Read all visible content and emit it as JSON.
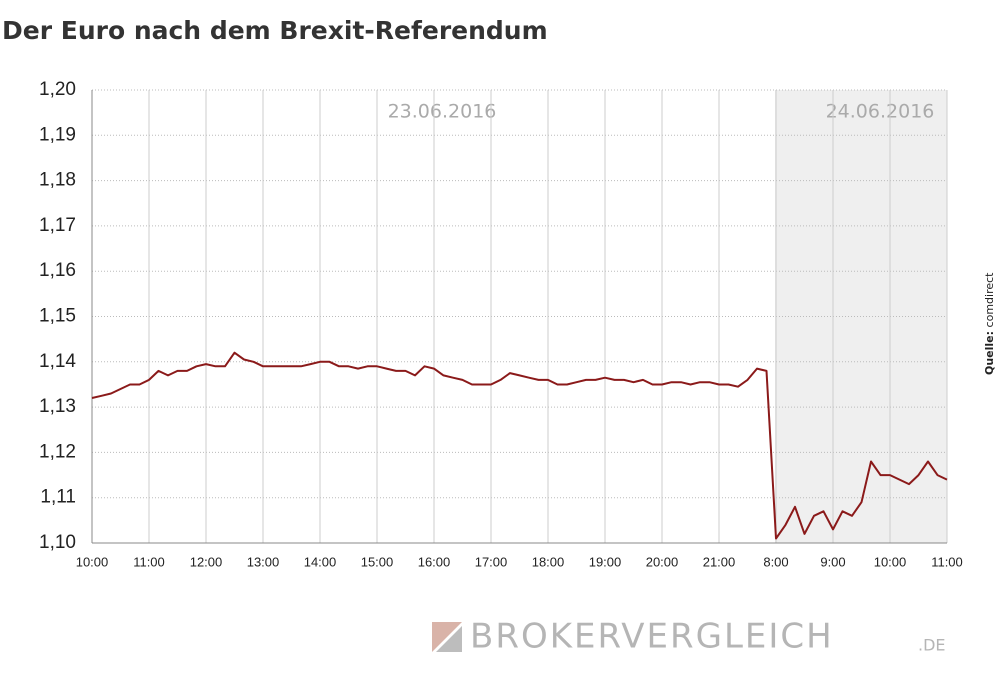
{
  "chart_data": {
    "type": "line",
    "title": "Der Euro nach dem Brexit-Referendum",
    "annotations": [
      "23.06.2016",
      "24.06.2016"
    ],
    "source_label": "Quelle:",
    "source": "comdirect",
    "watermark": [
      "BROKERVERGLEICH",
      ".DE"
    ],
    "categories": [
      "10:00",
      null,
      null,
      null,
      null,
      null,
      "11:00",
      null,
      null,
      null,
      null,
      null,
      "12:00",
      null,
      null,
      null,
      null,
      null,
      "13:00",
      null,
      null,
      null,
      null,
      null,
      "14:00",
      null,
      null,
      null,
      null,
      null,
      "15:00",
      null,
      null,
      null,
      null,
      null,
      "16:00",
      null,
      null,
      null,
      null,
      null,
      "17:00",
      null,
      null,
      null,
      null,
      null,
      "18:00",
      null,
      null,
      null,
      null,
      null,
      "19:00",
      null,
      null,
      null,
      null,
      null,
      "20:00",
      null,
      null,
      null,
      null,
      null,
      "21:00",
      null,
      null,
      null,
      null,
      null,
      "8:00",
      null,
      null,
      null,
      null,
      null,
      "9:00",
      null,
      null,
      null,
      null,
      null,
      "10:00",
      null,
      null,
      null,
      null,
      null,
      "11:00"
    ],
    "series": [
      {
        "color": "#8b1a1a",
        "values": [
          1.132,
          1.1325,
          1.133,
          1.134,
          1.135,
          1.135,
          1.136,
          1.138,
          1.137,
          1.138,
          1.138,
          1.139,
          1.1395,
          1.139,
          1.139,
          1.142,
          1.1405,
          1.14,
          1.139,
          1.139,
          1.139,
          1.139,
          1.139,
          1.1395,
          1.14,
          1.14,
          1.139,
          1.139,
          1.1385,
          1.139,
          1.139,
          1.1385,
          1.138,
          1.138,
          1.137,
          1.139,
          1.1385,
          1.137,
          1.1365,
          1.136,
          1.135,
          1.135,
          1.135,
          1.136,
          1.1375,
          1.137,
          1.1365,
          1.136,
          1.136,
          1.135,
          1.135,
          1.1355,
          1.136,
          1.136,
          1.1365,
          1.136,
          1.136,
          1.1355,
          1.136,
          1.135,
          1.135,
          1.1355,
          1.1355,
          1.135,
          1.1355,
          1.1355,
          1.135,
          1.135,
          1.1345,
          1.136,
          1.1385,
          1.138,
          1.101,
          1.104,
          1.108,
          1.102,
          1.106,
          1.107,
          1.103,
          1.107,
          1.106,
          1.109,
          1.118,
          1.115,
          1.115,
          1.114,
          1.113,
          1.115,
          1.118,
          1.115,
          1.114
        ]
      }
    ],
    "ylim": [
      1.1,
      1.2
    ],
    "yticks": [
      {
        "value": 1.1,
        "label": "1,10"
      },
      {
        "value": 1.11,
        "label": "1,11"
      },
      {
        "value": 1.12,
        "label": "1,12"
      },
      {
        "value": 1.13,
        "label": "1,13"
      },
      {
        "value": 1.14,
        "label": "1,14"
      },
      {
        "value": 1.15,
        "label": "1,15"
      },
      {
        "value": 1.16,
        "label": "1,16"
      },
      {
        "value": 1.17,
        "label": "1,17"
      },
      {
        "value": 1.18,
        "label": "1,18"
      },
      {
        "value": 1.19,
        "label": "1,19"
      },
      {
        "value": 1.2,
        "label": "1,20"
      }
    ],
    "grid": true
  }
}
